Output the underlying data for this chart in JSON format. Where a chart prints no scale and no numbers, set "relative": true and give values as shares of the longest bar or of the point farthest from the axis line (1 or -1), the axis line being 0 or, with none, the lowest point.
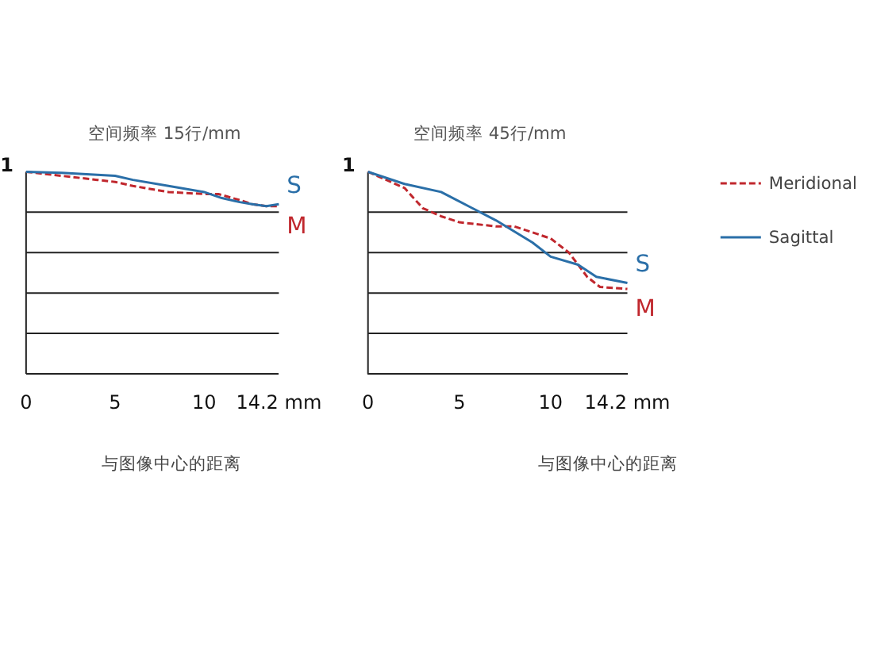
{
  "chart_data": [
    {
      "type": "line",
      "title": "空间频率 15行/mm",
      "xlabel": "与图像中心的距离",
      "xlim": [
        0,
        14.2
      ],
      "relative": true,
      "xticks": [
        0,
        5,
        10,
        {
          "value": 14.2,
          "label": "14.2 mm"
        }
      ],
      "grid": "y",
      "legend": false,
      "series": [
        {
          "color": "#c0272d",
          "line_style": "dashed",
          "x": [
            0,
            2,
            4,
            5,
            6,
            8,
            10,
            10.8,
            12,
            12.7,
            13.5,
            14.2
          ],
          "values": [
            1.0,
            0.98,
            0.96,
            0.95,
            0.93,
            0.9,
            0.89,
            0.89,
            0.86,
            0.84,
            0.83,
            0.83
          ]
        },
        {
          "color": "#2a6fa8",
          "line_style": "solid",
          "x": [
            0,
            2,
            4,
            5,
            6,
            8,
            10,
            11,
            12,
            12.7,
            13.5,
            14.2
          ],
          "values": [
            1.0,
            0.995,
            0.985,
            0.98,
            0.96,
            0.93,
            0.9,
            0.87,
            0.85,
            0.84,
            0.83,
            0.84
          ]
        }
      ],
      "annotations": [
        "1",
        "S",
        "M"
      ]
    },
    {
      "type": "line",
      "title": "空间频率 45行/mm",
      "xlabel": "与图像中心的距离",
      "xlim": [
        0,
        14.2
      ],
      "relative": true,
      "xticks": [
        0,
        5,
        10,
        {
          "value": 14.2,
          "label": "14.2 mm"
        }
      ],
      "grid": "y",
      "legend": "right",
      "series": [
        {
          "name": "Meridional",
          "color": "#c0272d",
          "line_style": "dashed",
          "x": [
            0,
            2,
            3,
            4,
            5,
            7,
            8,
            10,
            11,
            12,
            12.7,
            14.2
          ],
          "values": [
            1.0,
            0.92,
            0.82,
            0.78,
            0.75,
            0.73,
            0.73,
            0.67,
            0.6,
            0.48,
            0.43,
            0.42
          ]
        },
        {
          "name": "Sagittal",
          "color": "#2a6fa8",
          "line_style": "solid",
          "x": [
            0,
            2,
            4,
            5.5,
            7,
            9,
            10,
            11.5,
            12.5,
            14.2
          ],
          "values": [
            1.0,
            0.94,
            0.9,
            0.83,
            0.76,
            0.65,
            0.58,
            0.54,
            0.48,
            0.45
          ]
        }
      ],
      "annotations": [
        "1",
        "S",
        "M"
      ]
    }
  ]
}
